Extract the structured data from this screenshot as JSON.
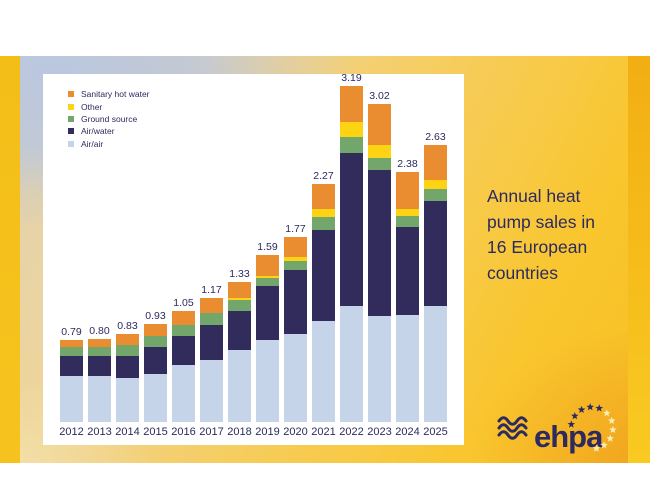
{
  "title": {
    "lines": [
      "Annual heat",
      "pump sales in",
      "16 European",
      "countries"
    ],
    "color": "#2d2a5e"
  },
  "legend": {
    "items": [
      {
        "label": "Sanitary hot water",
        "color": "#ea8c30"
      },
      {
        "label": "Other",
        "color": "#fed314"
      },
      {
        "label": "Ground source",
        "color": "#73a66a"
      },
      {
        "label": "Air/water",
        "color": "#322c5d"
      },
      {
        "label": "Air/air",
        "color": "#c6d4ea"
      }
    ]
  },
  "logo": {
    "text": "ehpa"
  },
  "colors": {
    "accent_gold": "#f5c01a",
    "accent_orange": "#f2ae13",
    "label_navy": "#2d2a5e",
    "panel_background": "#ffffff"
  },
  "chart_data": {
    "type": "bar",
    "stacked": true,
    "title": "Annual heat pump sales in 16 European countries",
    "xlabel": "",
    "ylabel": "",
    "unit": "million units",
    "ylim": [
      0,
      3.4
    ],
    "grid": false,
    "legend_position": "top-left",
    "categories": [
      "2012",
      "2013",
      "2014",
      "2015",
      "2016",
      "2017",
      "2018",
      "2019",
      "2020",
      "2021",
      "2022",
      "2023",
      "2024",
      "2025"
    ],
    "series": [
      {
        "name": "Air/air",
        "color": "#c6d4ea",
        "values": [
          0.44,
          0.44,
          0.42,
          0.46,
          0.54,
          0.59,
          0.69,
          0.78,
          0.84,
          0.96,
          1.1,
          1.01,
          1.02,
          1.1
        ]
      },
      {
        "name": "Air/water",
        "color": "#322c5d",
        "values": [
          0.19,
          0.19,
          0.21,
          0.26,
          0.28,
          0.33,
          0.37,
          0.51,
          0.61,
          0.87,
          1.46,
          1.39,
          0.84,
          1.0
        ]
      },
      {
        "name": "Ground source",
        "color": "#73a66a",
        "values": [
          0.09,
          0.09,
          0.1,
          0.1,
          0.1,
          0.11,
          0.1,
          0.08,
          0.09,
          0.12,
          0.15,
          0.11,
          0.1,
          0.11
        ]
      },
      {
        "name": "Other",
        "color": "#fed314",
        "values": [
          0.0,
          0.0,
          0.0,
          0.0,
          0.0,
          0.0,
          0.02,
          0.02,
          0.04,
          0.08,
          0.14,
          0.12,
          0.07,
          0.09
        ]
      },
      {
        "name": "Sanitary hot water",
        "color": "#ea8c30",
        "values": [
          0.07,
          0.08,
          0.1,
          0.11,
          0.13,
          0.14,
          0.15,
          0.2,
          0.19,
          0.24,
          0.34,
          0.39,
          0.35,
          0.33
        ]
      }
    ],
    "totals": [
      "0.79",
      "0.80",
      "0.83",
      "0.93",
      "1.05",
      "1.17",
      "1.33",
      "1.59",
      "1.77",
      "2.27",
      "3.19",
      "3.02",
      "2.38",
      "2.63"
    ]
  }
}
